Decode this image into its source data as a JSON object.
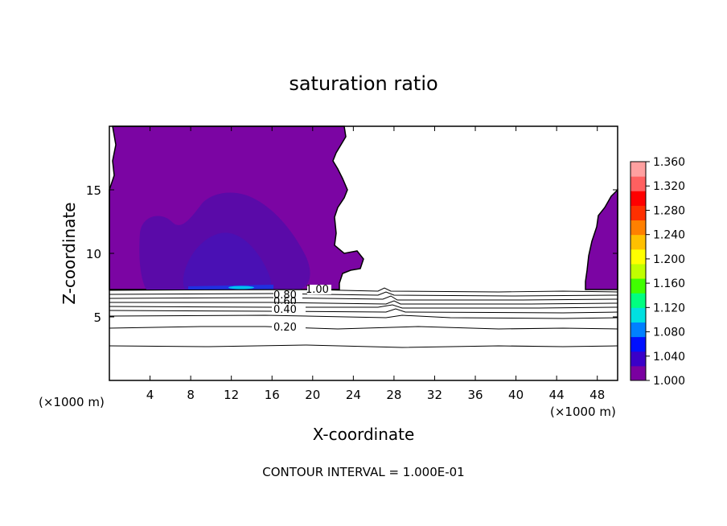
{
  "chart_data": {
    "type": "contour",
    "title": "saturation ratio",
    "xlabel": "X-coordinate",
    "ylabel": "Z-coordinate",
    "x_unit": "(×1000 m)",
    "z_unit": "(×1000 m)",
    "xlim": [
      0,
      50
    ],
    "ylim": [
      0,
      20
    ],
    "x_ticks": [
      "4",
      "8",
      "12",
      "16",
      "20",
      "24",
      "28",
      "32",
      "36",
      "40",
      "44",
      "48"
    ],
    "y_ticks": [
      "5",
      "10",
      "15"
    ],
    "contour_labels": [
      "1.00",
      "0.80",
      "0.60",
      "0.40",
      "0.20"
    ],
    "colorbar": {
      "ticks": [
        "1.360",
        "1.320",
        "1.280",
        "1.240",
        "1.200",
        "1.160",
        "1.120",
        "1.080",
        "1.040",
        "1.000"
      ],
      "colors": [
        "#7a00a0",
        "#3a00c8",
        "#0010ff",
        "#0080ff",
        "#00e0e0",
        "#00ff80",
        "#40ff00",
        "#c0ff00",
        "#ffff00",
        "#ffc000",
        "#ff8000",
        "#ff3000",
        "#ff0000",
        "#ff6060",
        "#ffa0a0"
      ]
    },
    "footer": "CONTOUR INTERVAL = 1.000E-01",
    "fill_colors": {
      "base": "#7b05a3",
      "deep": "#5a0aa8",
      "core": "#4a10b4",
      "streak": "#2030e0",
      "streak_hot": "#00c0f0"
    }
  }
}
